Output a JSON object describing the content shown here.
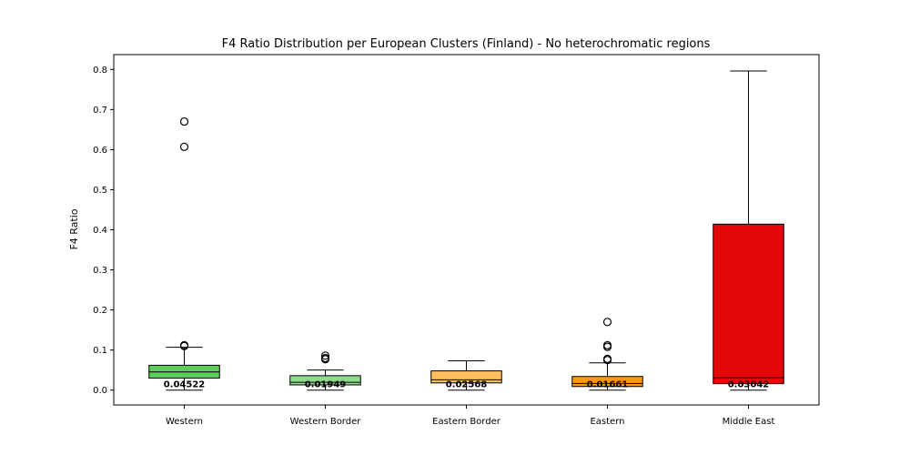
{
  "chart_data": {
    "type": "box",
    "title": "F4 Ratio Distribution per European Clusters (Finland) - No heterochromatic regions",
    "xlabel": "",
    "ylabel": "F4 Ratio",
    "ylim": [
      -0.037,
      0.837
    ],
    "yticks": [
      0.0,
      0.1,
      0.2,
      0.3,
      0.4,
      0.5,
      0.6,
      0.7,
      0.8
    ],
    "ytick_labels": [
      "0.0",
      "0.1",
      "0.2",
      "0.3",
      "0.4",
      "0.5",
      "0.6",
      "0.7",
      "0.8"
    ],
    "grid": false,
    "categories": [
      "Western",
      "Western Border",
      "Eastern Border",
      "Eastern",
      "Middle East"
    ],
    "boxes": [
      {
        "name": "Western",
        "color": "#5ccc5c",
        "whisker_low": 0.0,
        "q1": 0.03,
        "median": 0.04522,
        "q3": 0.062,
        "whisker_high": 0.107,
        "outliers": [
          0.11,
          0.112,
          0.607,
          0.67
        ],
        "median_label": "0.04522"
      },
      {
        "name": "Western Border",
        "color": "#8edb8e",
        "whisker_low": 0.0,
        "q1": 0.013,
        "median": 0.01949,
        "q3": 0.036,
        "whisker_high": 0.05,
        "outliers": [
          0.077,
          0.08,
          0.086
        ],
        "median_label": "0.01949"
      },
      {
        "name": "Eastern Border",
        "color": "#ffbf5e",
        "whisker_low": 0.0,
        "q1": 0.018,
        "median": 0.02568,
        "q3": 0.048,
        "whisker_high": 0.073,
        "outliers": [],
        "median_label": "0.02568"
      },
      {
        "name": "Eastern",
        "color": "#ff9a0e",
        "whisker_low": 0.0,
        "q1": 0.009,
        "median": 0.01661,
        "q3": 0.034,
        "whisker_high": 0.068,
        "outliers": [
          0.075,
          0.078,
          0.108,
          0.112,
          0.17
        ],
        "median_label": "0.01661"
      },
      {
        "name": "Middle East",
        "color": "#e40707",
        "whisker_low": 0.0,
        "q1": 0.016,
        "median": 0.03042,
        "q3": 0.414,
        "whisker_high": 0.796,
        "outliers": [],
        "median_label": "0.03042"
      }
    ]
  }
}
